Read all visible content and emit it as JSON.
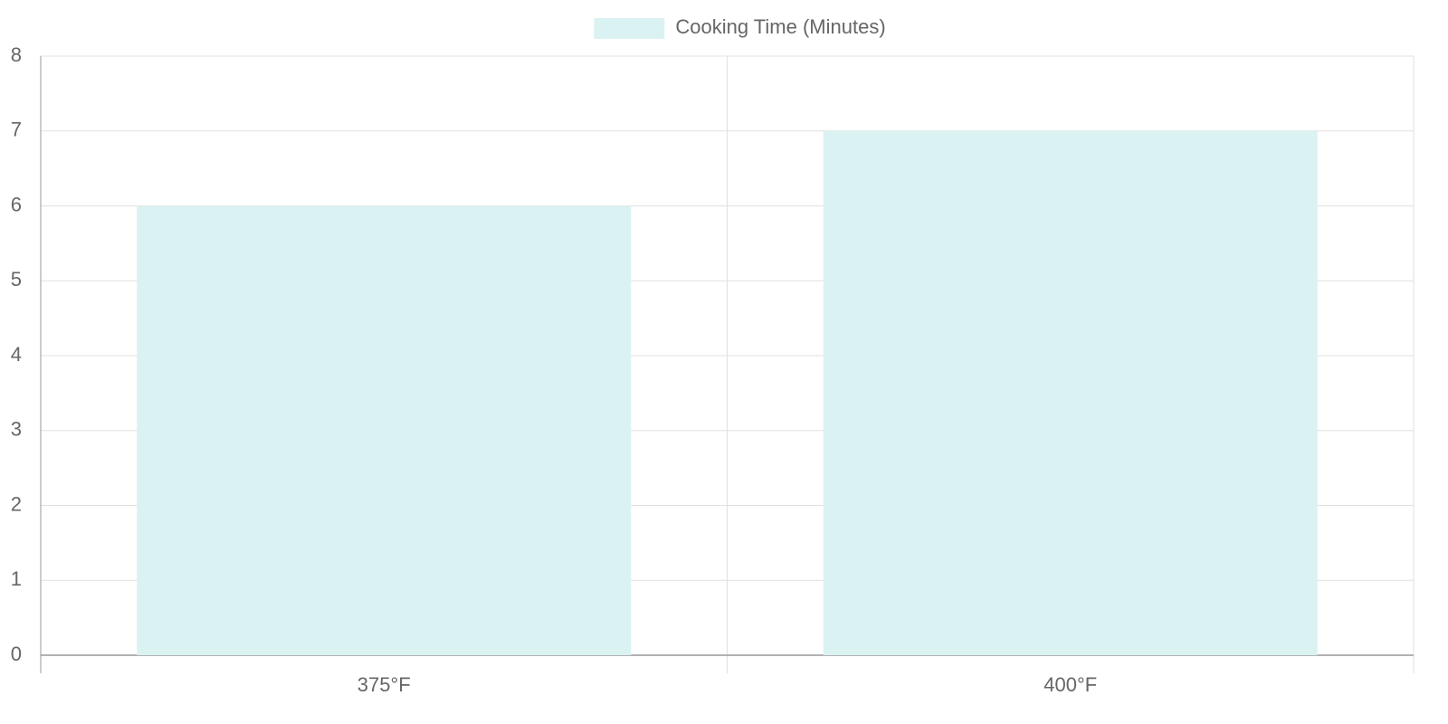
{
  "chart_data": {
    "type": "bar",
    "categories": [
      "375°F",
      "400°F"
    ],
    "series": [
      {
        "name": "Cooking Time (Minutes)",
        "color": "#dbf2f2",
        "values": [
          6,
          7
        ]
      }
    ],
    "ylim": [
      0,
      8
    ],
    "yticks": [
      0,
      1,
      2,
      3,
      4,
      5,
      6,
      7,
      8
    ],
    "grid": true,
    "legend": "top"
  }
}
